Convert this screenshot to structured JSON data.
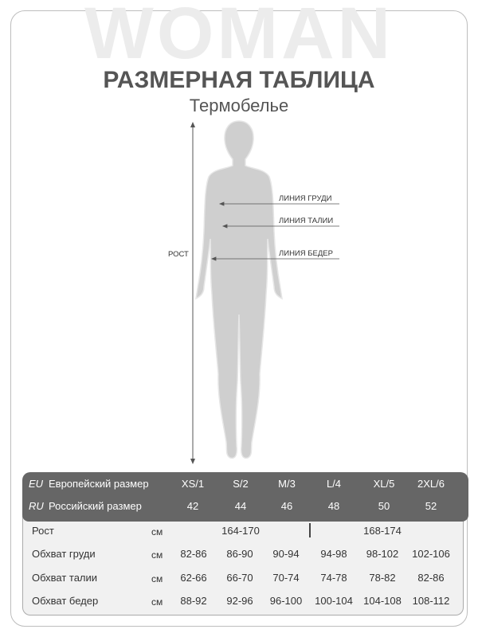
{
  "watermark": "WOMAN",
  "title": "РАЗМЕРНАЯ ТАБЛИЦА",
  "subtitle": "Термобелье",
  "figure": {
    "height_label": "РОСТ",
    "chest_line": "ЛИНИЯ ГРУДИ",
    "waist_line": "ЛИНИЯ ТАЛИИ",
    "hip_line": "ЛИНИЯ БЕДЕР"
  },
  "colors": {
    "header_bg": "#666666",
    "body_bg": "#f1f1f1",
    "figure": "#cfcfcf"
  },
  "table": {
    "eu": {
      "code": "EU",
      "label": "Европейский размер",
      "sizes": [
        "XS/1",
        "S/2",
        "M/3",
        "L/4",
        "XL/5",
        "2XL/6"
      ]
    },
    "ru": {
      "code": "RU",
      "label": "Российский размер",
      "sizes": [
        "42",
        "44",
        "46",
        "48",
        "50",
        "52"
      ]
    },
    "height": {
      "label": "Рост",
      "unit": "см",
      "groups": [
        "164-170",
        "168-174"
      ]
    },
    "rows": [
      {
        "label": "Обхват груди",
        "unit": "см",
        "values": [
          "82-86",
          "86-90",
          "90-94",
          "94-98",
          "98-102",
          "102-106"
        ]
      },
      {
        "label": "Обхват талии",
        "unit": "см",
        "values": [
          "62-66",
          "66-70",
          "70-74",
          "74-78",
          "78-82",
          "82-86"
        ]
      },
      {
        "label": "Обхват бедер",
        "unit": "см",
        "values": [
          "88-92",
          "92-96",
          "96-100",
          "100-104",
          "104-108",
          "108-112"
        ]
      }
    ]
  }
}
